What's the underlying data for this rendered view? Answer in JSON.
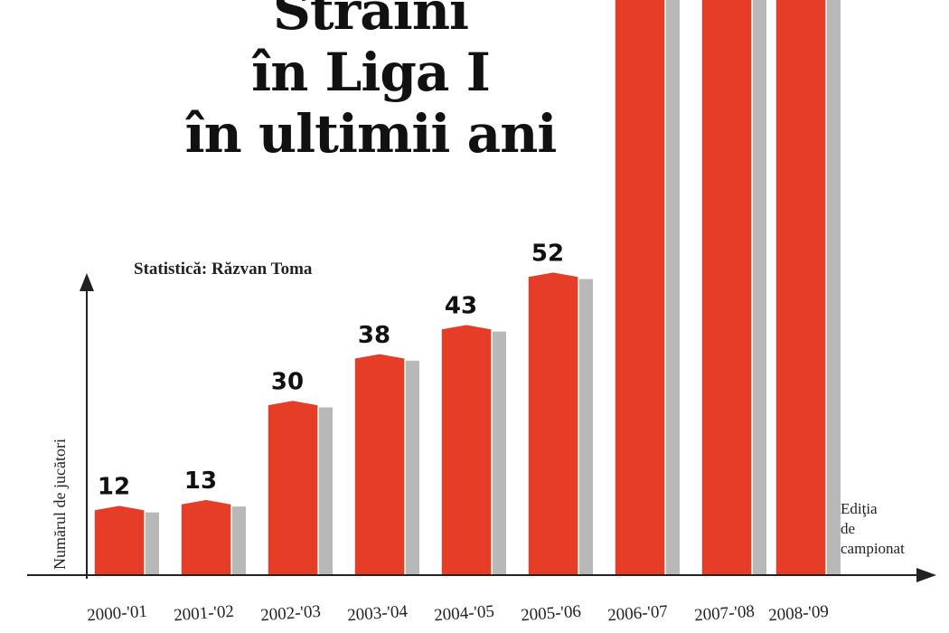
{
  "title": {
    "line1": "Străini",
    "line2": "în Liga I",
    "line3": "în ultimii ani"
  },
  "credit": "Statistică: Răzvan Toma",
  "chart_data": {
    "type": "bar",
    "title": "Străini în Liga I în ultimii ani",
    "categories": [
      "2000-'01",
      "2001-'02",
      "2002-'03",
      "2003-'04",
      "2004-'05",
      "2005-'06",
      "2006-'07",
      "2007-'08",
      "2008-'09"
    ],
    "values": [
      12,
      13,
      30,
      38,
      43,
      52,
      null,
      null,
      null
    ],
    "value_labels": [
      "12",
      "13",
      "30",
      "38",
      "43",
      "52",
      "",
      "",
      ""
    ],
    "ylabel": "Numărul de jucători",
    "xlabel_lines": [
      "Ediţia",
      "de",
      "campionat"
    ],
    "bar_color": "#e63d28",
    "shadow_color": "#b8b8b8",
    "grid": false,
    "note": "Bars for 2006-'07, 2007-'08 and 2008-'09 extend beyond the top of the visible image; their labels are cropped."
  }
}
